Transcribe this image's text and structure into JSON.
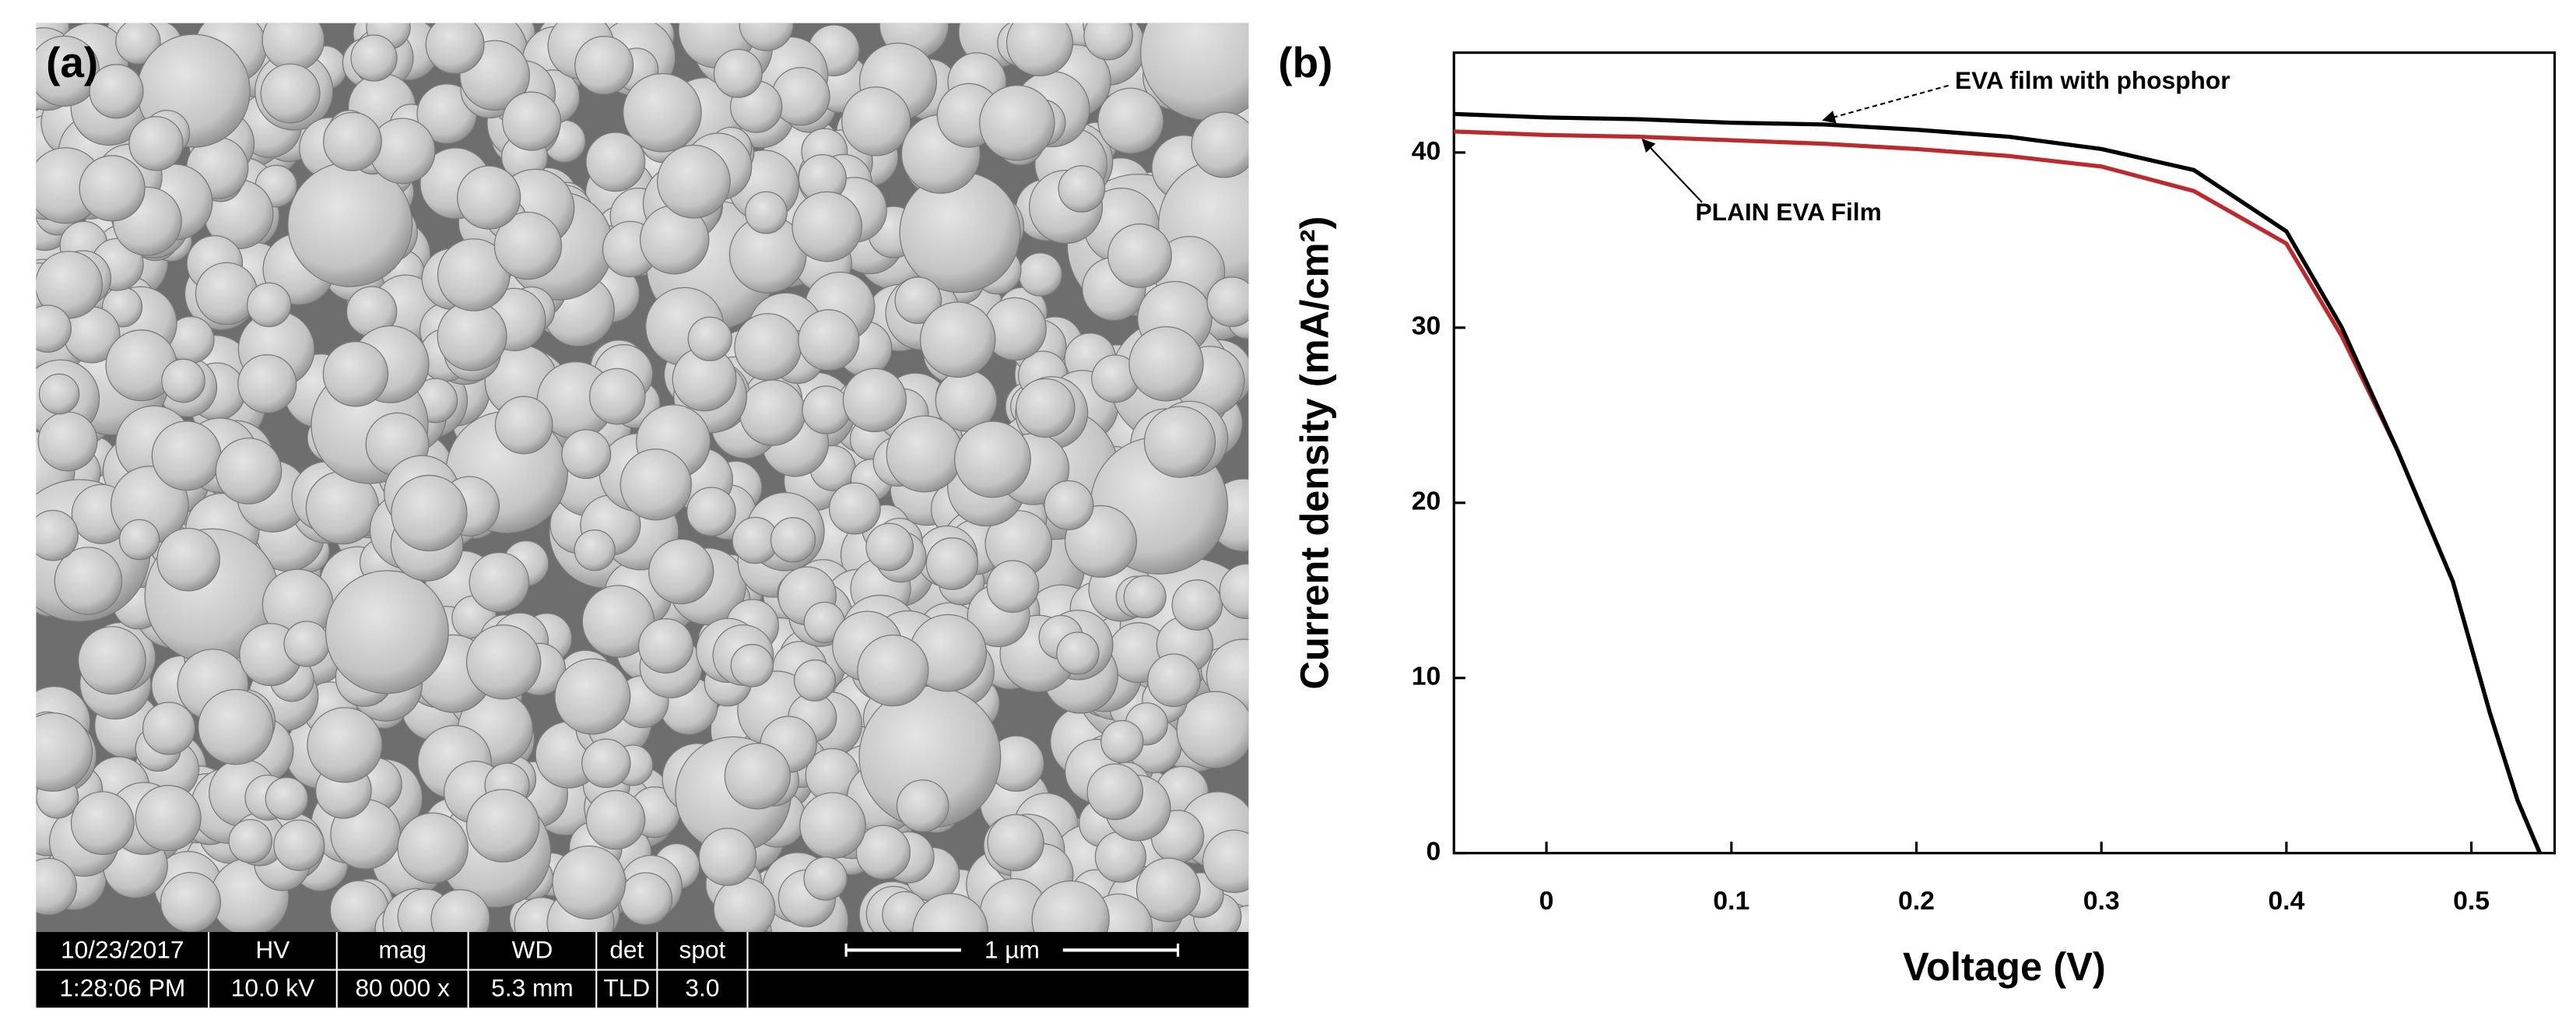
{
  "sem": {
    "label": "(a)",
    "info": [
      {
        "header": "10/23/2017",
        "value": "1:28:06 PM"
      },
      {
        "header": "HV",
        "value": "10.0 kV"
      },
      {
        "header": "mag",
        "value": "80 000 x"
      },
      {
        "header": "WD",
        "value": "5.3 mm"
      },
      {
        "header": "det",
        "value": "TLD"
      },
      {
        "header": "spot",
        "value": "3.0"
      }
    ],
    "scale_bar": "1 µm"
  },
  "chart_data": {
    "type": "line",
    "panel_label": "(b)",
    "x_label": "Voltage (V)",
    "y_label": "Current density (mA/cm²)",
    "x": [
      -0.05,
      0,
      0.05,
      0.1,
      0.15,
      0.2,
      0.25,
      0.3,
      0.35,
      0.4,
      0.43,
      0.46,
      0.49,
      0.51,
      0.525,
      0.537
    ],
    "series": [
      {
        "name": "EVA film with phosphor",
        "color": "#000000",
        "values": [
          42.2,
          42.0,
          41.9,
          41.7,
          41.6,
          41.3,
          40.9,
          40.2,
          39.0,
          35.5,
          30.0,
          23.0,
          15.5,
          8.0,
          3.0,
          0
        ]
      },
      {
        "name": "PLAIN EVA Film",
        "color": "#c0292b",
        "values": [
          41.2,
          41.0,
          40.9,
          40.7,
          40.5,
          40.2,
          39.8,
          39.2,
          37.8,
          34.8,
          29.5,
          23.0,
          15.5,
          8.0,
          3.0,
          0
        ]
      }
    ],
    "xlim": [
      -0.05,
      0.545
    ],
    "ylim": [
      0,
      45.7
    ],
    "xticks": [
      0,
      0.1,
      0.2,
      0.3,
      0.4,
      0.5
    ],
    "yticks": [
      0,
      10,
      20,
      30,
      40
    ]
  }
}
